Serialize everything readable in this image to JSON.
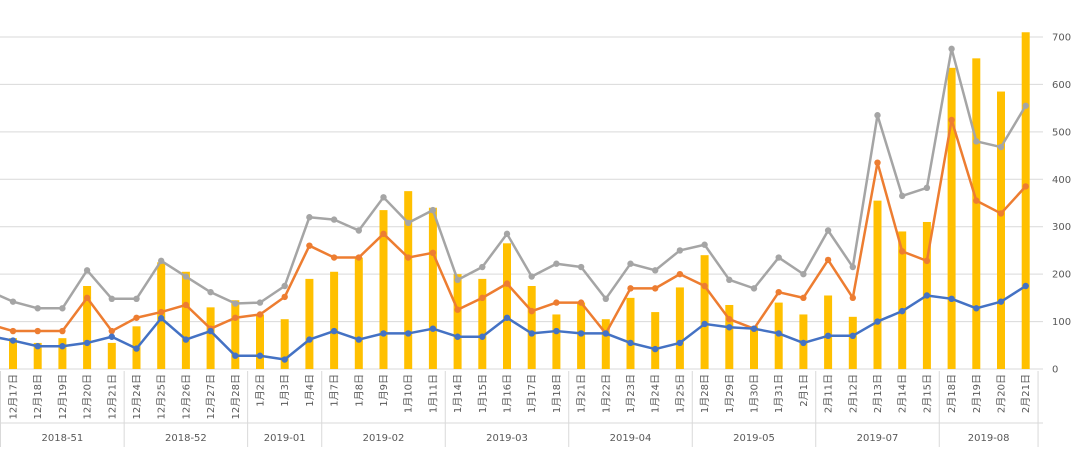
{
  "chart_data": {
    "type": "bar",
    "title": "",
    "xlabel": "",
    "ylabel": "",
    "ylim": [
      0,
      700
    ],
    "y_ticks": [
      "0",
      "100",
      "200",
      "300",
      "400",
      "500",
      "600",
      "700"
    ],
    "y_axis_side": "right",
    "grid": true,
    "legend": "none",
    "categories": [
      "12月17日",
      "12月18日",
      "12月19日",
      "12月20日",
      "12月21日",
      "12月24日",
      "12月25日",
      "12月26日",
      "12月27日",
      "12月28日",
      "1月2日",
      "1月3日",
      "1月4日",
      "1月7日",
      "1月8日",
      "1月9日",
      "1月10日",
      "1月11日",
      "1月14日",
      "1月15日",
      "1月16日",
      "1月17日",
      "1月18日",
      "1月21日",
      "1月22日",
      "1月23日",
      "1月24日",
      "1月25日",
      "1月28日",
      "1月29日",
      "1月30日",
      "1月31日",
      "2月1日",
      "2月11日",
      "2月12日",
      "2月13日",
      "2月14日",
      "2月15日",
      "2月18日",
      "2月19日",
      "2月20日",
      "2月21日"
    ],
    "week_groups": [
      {
        "label": "2018-51",
        "count": 5
      },
      {
        "label": "2018-52",
        "count": 5
      },
      {
        "label": "2019-01",
        "count": 3
      },
      {
        "label": "2019-02",
        "count": 5
      },
      {
        "label": "2019-03",
        "count": 5
      },
      {
        "label": "2019-04",
        "count": 5
      },
      {
        "label": "2019-05",
        "count": 5
      },
      {
        "label": "2019-07",
        "count": 5
      },
      {
        "label": "2019-08",
        "count": 4
      }
    ],
    "series": [
      {
        "kind": "bar",
        "color": "#FFC000",
        "values": [
          65,
          55,
          65,
          175,
          55,
          90,
          225,
          205,
          130,
          145,
          115,
          105,
          190,
          205,
          235,
          335,
          375,
          340,
          200,
          190,
          265,
          175,
          115,
          140,
          105,
          150,
          120,
          172,
          240,
          135,
          90,
          140,
          115,
          155,
          110,
          355,
          290,
          310,
          635,
          655,
          585,
          710
        ]
      },
      {
        "kind": "line",
        "color": "#4472C4",
        "values": [
          60,
          48,
          48,
          55,
          68,
          43,
          107,
          62,
          80,
          28,
          28,
          20,
          62,
          80,
          62,
          75,
          75,
          85,
          68,
          68,
          108,
          75,
          80,
          75,
          75,
          55,
          42,
          55,
          95,
          88,
          85,
          75,
          55,
          70,
          70,
          100,
          122,
          155,
          148,
          128,
          142,
          175
        ]
      },
      {
        "kind": "line",
        "color": "#ED7D31",
        "values": [
          80,
          80,
          80,
          150,
          80,
          108,
          120,
          135,
          85,
          108,
          115,
          152,
          260,
          235,
          235,
          285,
          235,
          245,
          125,
          150,
          180,
          122,
          140,
          140,
          75,
          170,
          170,
          200,
          175,
          105,
          85,
          162,
          150,
          230,
          150,
          435,
          248,
          228,
          525,
          355,
          328,
          385
        ]
      },
      {
        "kind": "line",
        "color": "#A5A5A5",
        "values": [
          142,
          128,
          128,
          208,
          148,
          148,
          228,
          195,
          162,
          138,
          140,
          175,
          320,
          315,
          292,
          362,
          308,
          335,
          188,
          215,
          285,
          195,
          222,
          215,
          148,
          222,
          208,
          250,
          262,
          188,
          170,
          235,
          200,
          292,
          215,
          535,
          365,
          382,
          675,
          480,
          468,
          555
        ]
      }
    ],
    "leading_partial": {
      "bar": 65,
      "blue": 70,
      "orange": 95,
      "gray": 165
    }
  }
}
